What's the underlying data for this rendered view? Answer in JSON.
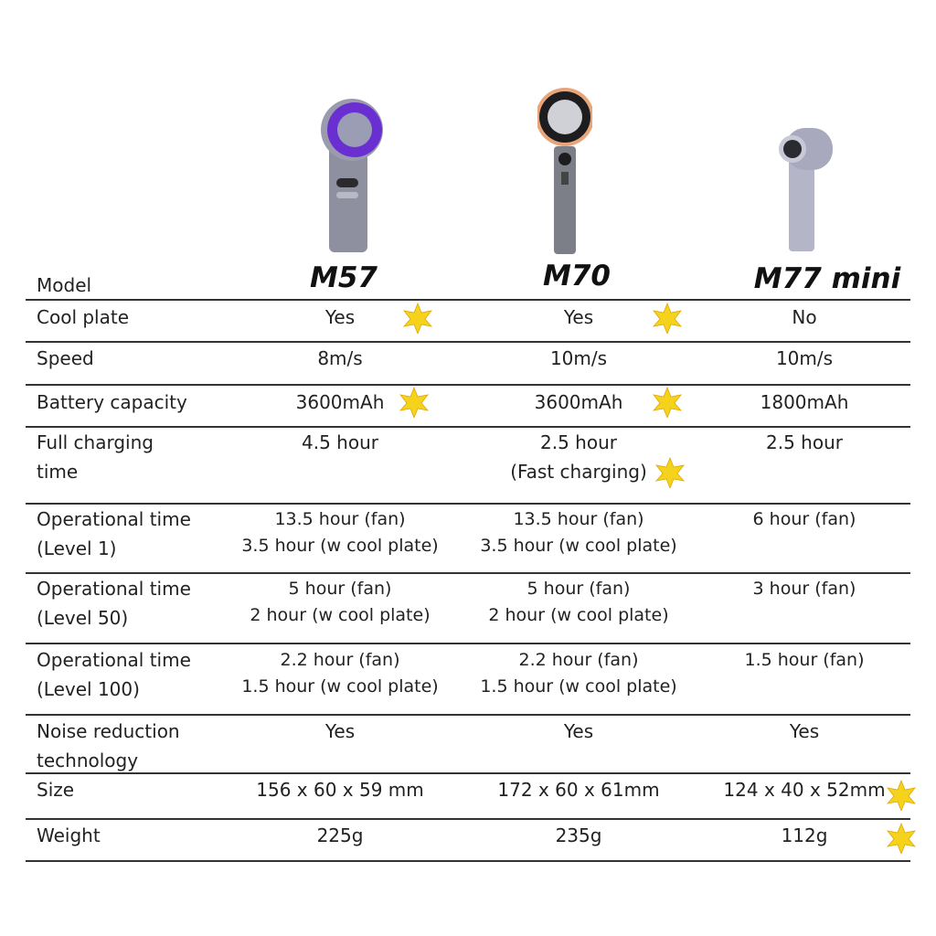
{
  "header": {
    "label": "Model",
    "models": [
      "M57",
      "M70",
      "M77 mini"
    ]
  },
  "colors": {
    "star": "#f5d21c",
    "m57_accent": "#6a2fd0",
    "m70_accent": "#e8a57a",
    "body": "#8e90a0"
  },
  "rows": [
    {
      "label": [
        "Cool plate"
      ],
      "values": [
        [
          "Yes"
        ],
        [
          "Yes"
        ],
        [
          "No"
        ]
      ],
      "stars": [
        true,
        true,
        false
      ]
    },
    {
      "label": [
        "Speed"
      ],
      "values": [
        [
          "8m/s"
        ],
        [
          "10m/s"
        ],
        [
          "10m/s"
        ]
      ],
      "stars": [
        false,
        false,
        false
      ]
    },
    {
      "label": [
        "Battery capacity"
      ],
      "values": [
        [
          "3600mAh"
        ],
        [
          "3600mAh"
        ],
        [
          "1800mAh"
        ]
      ],
      "stars": [
        true,
        true,
        false
      ]
    },
    {
      "label": [
        "Full charging",
        "time"
      ],
      "values": [
        [
          "4.5 hour"
        ],
        [
          "2.5 hour",
          "(Fast charging)"
        ],
        [
          "2.5 hour"
        ]
      ],
      "stars": [
        false,
        true,
        false
      ]
    },
    {
      "label": [
        "Operational time",
        "(Level 1)"
      ],
      "values": [
        [
          "13.5 hour (fan)",
          "3.5 hour (w cool plate)"
        ],
        [
          "13.5 hour (fan)",
          "3.5 hour (w cool plate)"
        ],
        [
          "6 hour (fan)"
        ]
      ],
      "stars": [
        false,
        false,
        false
      ]
    },
    {
      "label": [
        "Operational time",
        "(Level 50)"
      ],
      "values": [
        [
          "5 hour (fan)",
          "2 hour (w cool plate)"
        ],
        [
          "5 hour (fan)",
          "2 hour (w cool plate)"
        ],
        [
          "3 hour (fan)"
        ]
      ],
      "stars": [
        false,
        false,
        false
      ]
    },
    {
      "label": [
        "Operational time",
        "(Level 100)"
      ],
      "values": [
        [
          "2.2 hour (fan)",
          "1.5 hour (w cool plate)"
        ],
        [
          "2.2 hour (fan)",
          "1.5 hour (w cool plate)"
        ],
        [
          "1.5 hour (fan)"
        ]
      ],
      "stars": [
        false,
        false,
        false
      ]
    },
    {
      "label": [
        "Noise reduction",
        "technology"
      ],
      "values": [
        [
          "Yes"
        ],
        [
          "Yes"
        ],
        [
          "Yes"
        ]
      ],
      "stars": [
        false,
        false,
        false
      ]
    },
    {
      "label": [
        "Size"
      ],
      "values": [
        [
          "156 x 60 x 59 mm"
        ],
        [
          "172 x 60 x 61mm"
        ],
        [
          "124 x 40 x 52mm"
        ]
      ],
      "stars": [
        false,
        false,
        true
      ]
    },
    {
      "label": [
        "Weight"
      ],
      "values": [
        [
          "225g"
        ],
        [
          "235g"
        ],
        [
          "112g"
        ]
      ],
      "stars": [
        false,
        false,
        true
      ]
    }
  ]
}
